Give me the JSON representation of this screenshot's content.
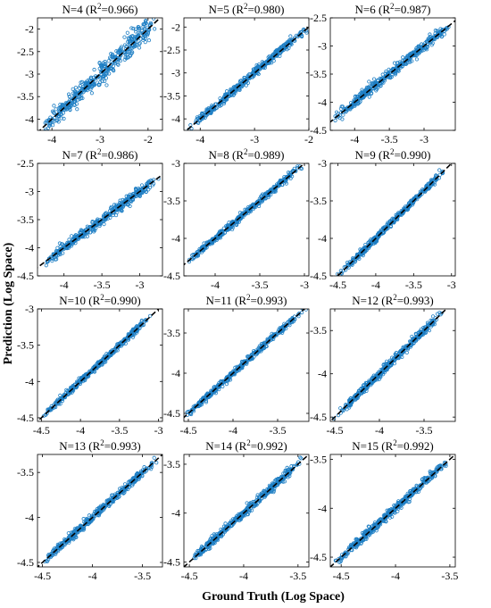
{
  "figure": {
    "ylabel": "Prediction (Log Space)",
    "xlabel": "Ground Truth (Log Space)"
  },
  "colors": {
    "point": "#1f7fc4",
    "diagonal": "#000000",
    "axes": "#000000",
    "background": "#ffffff"
  },
  "chart_data": [
    {
      "type": "scatter",
      "title": "N=4",
      "r2": "0.966",
      "xlim": [
        -4.3,
        -1.7
      ],
      "ylim": [
        -4.25,
        -1.75
      ],
      "xticks": [
        "-4",
        "-3",
        "-2"
      ],
      "yticks": [
        "-4",
        "-3.5",
        "-3",
        "-2.5",
        "-2"
      ],
      "diagonal": "y = x (dashed)",
      "spread": "wide",
      "data_range": [
        -4.25,
        -1.8
      ],
      "points": "approx. 400 points scattered along y = x"
    },
    {
      "type": "scatter",
      "title": "N=5",
      "r2": "0.980",
      "xlim": [
        -4.3,
        -2.0
      ],
      "ylim": [
        -4.25,
        -1.8
      ],
      "xticks": [
        "-4",
        "-3",
        "-2"
      ],
      "yticks": [
        "-4",
        "-3.5",
        "-3",
        "-2.5",
        "-2"
      ],
      "diagonal": "y = x (dashed)",
      "spread": "moderate",
      "data_range": [
        -4.25,
        -2.0
      ],
      "points": "approx. 400 points scattered along y = x"
    },
    {
      "type": "scatter",
      "title": "N=6",
      "r2": "0.987",
      "xlim": [
        -4.35,
        -2.55
      ],
      "ylim": [
        -4.5,
        -2.5
      ],
      "xticks": [
        "-4",
        "-3.5",
        "-3"
      ],
      "yticks": [
        "-4.5",
        "-4",
        "-3.5",
        "-3",
        "-2.5"
      ],
      "diagonal": "y = x (dashed)",
      "spread": "moderate",
      "data_range": [
        -4.3,
        -2.6
      ],
      "points": "approx. 400 points scattered along y = x"
    },
    {
      "type": "scatter",
      "title": "N=7",
      "r2": "0.986",
      "xlim": [
        -4.35,
        -2.7
      ],
      "ylim": [
        -4.5,
        -2.5
      ],
      "xticks": [
        "-4",
        "-3.5",
        "-3"
      ],
      "yticks": [
        "-4.5",
        "-4",
        "-3.5",
        "-3",
        "-2.5"
      ],
      "diagonal": "y = x (dashed)",
      "spread": "moderate",
      "data_range": [
        -4.3,
        -2.75
      ],
      "points": "approx. 400 points scattered along y = x"
    },
    {
      "type": "scatter",
      "title": "N=8",
      "r2": "0.989",
      "xlim": [
        -4.35,
        -2.95
      ],
      "ylim": [
        -4.5,
        -3.0
      ],
      "xticks": [
        "-4",
        "-3.5",
        "-3"
      ],
      "yticks": [
        "-4.5",
        "-4",
        "-3.5",
        "-3"
      ],
      "diagonal": "y = x (dashed)",
      "spread": "narrow",
      "data_range": [
        -4.35,
        -3.0
      ],
      "points": "approx. 400 points scattered along y = x"
    },
    {
      "type": "scatter",
      "title": "N=9",
      "r2": "0.990",
      "xlim": [
        -4.6,
        -2.95
      ],
      "ylim": [
        -4.5,
        -3.0
      ],
      "xticks": [
        "-4.5",
        "-4",
        "-3.5",
        "-3"
      ],
      "yticks": [
        "-4.5",
        "-4",
        "-3.5",
        "-3"
      ],
      "diagonal": "y = x (dashed)",
      "spread": "narrow",
      "data_range": [
        -4.5,
        -3.05
      ],
      "points": "approx. 400 points scattered along y = x"
    },
    {
      "type": "scatter",
      "title": "N=10",
      "r2": "0.990",
      "xlim": [
        -4.55,
        -2.95
      ],
      "ylim": [
        -4.55,
        -3.0
      ],
      "xticks": [
        "-4.5",
        "-4",
        "-3.5",
        "-3"
      ],
      "yticks": [
        "-4.5",
        "-4",
        "-3.5",
        "-3"
      ],
      "diagonal": "y = x (dashed)",
      "spread": "narrow",
      "data_range": [
        -4.5,
        -3.1
      ],
      "points": "approx. 400 points scattered along y = x"
    },
    {
      "type": "scatter",
      "title": "N=11",
      "r2": "0.993",
      "xlim": [
        -4.55,
        -3.15
      ],
      "ylim": [
        -4.6,
        -3.2
      ],
      "xticks": [
        "-4.5",
        "-4",
        "-3.5"
      ],
      "yticks": [
        "-4.5",
        "-4",
        "-3.5"
      ],
      "diagonal": "y = x (dashed)",
      "spread": "narrow",
      "data_range": [
        -4.55,
        -3.2
      ],
      "points": "approx. 400 points scattered along y = x"
    },
    {
      "type": "scatter",
      "title": "N=12",
      "r2": "0.993",
      "xlim": [
        -4.55,
        -3.15
      ],
      "ylim": [
        -4.55,
        -3.25
      ],
      "xticks": [
        "-4.5",
        "-4",
        "-3.5"
      ],
      "yticks": [
        "-4.5",
        "-4",
        "-3.5"
      ],
      "diagonal": "y = x (dashed)",
      "spread": "narrow",
      "data_range": [
        -4.5,
        -3.3
      ],
      "points": "approx. 400 points scattered along y = x"
    },
    {
      "type": "scatter",
      "title": "N=13",
      "r2": "0.993",
      "xlim": [
        -4.55,
        -3.3
      ],
      "ylim": [
        -4.55,
        -3.3
      ],
      "xticks": [
        "-4.5",
        "-4",
        "-3.5"
      ],
      "yticks": [
        "-4.5",
        "-4",
        "-3.5"
      ],
      "diagonal": "y = x (dashed)",
      "spread": "narrow",
      "data_range": [
        -4.5,
        -3.35
      ],
      "points": "approx. 400 points scattered along y = x"
    },
    {
      "type": "scatter",
      "title": "N=14",
      "r2": "0.992",
      "xlim": [
        -4.55,
        -3.4
      ],
      "ylim": [
        -4.55,
        -3.4
      ],
      "xticks": [
        "-4.5",
        "-4",
        "-3.5"
      ],
      "yticks": [
        "-4.5",
        "-4",
        "-3.5"
      ],
      "diagonal": "y = x (dashed)",
      "spread": "narrow",
      "data_range": [
        -4.5,
        -3.45
      ],
      "points": "approx. 400 points scattered along y = x"
    },
    {
      "type": "scatter",
      "title": "N=15",
      "r2": "0.992",
      "xlim": [
        -4.6,
        -3.45
      ],
      "ylim": [
        -4.6,
        -3.45
      ],
      "xticks": [
        "-4.5",
        "-4",
        "-3.5"
      ],
      "yticks": [
        "-4.5",
        "-4",
        "-3.5"
      ],
      "diagonal": "y = x (dashed)",
      "spread": "narrow",
      "data_range": [
        -4.55,
        -3.5
      ],
      "points": "approx. 400 points scattered along y = x"
    }
  ]
}
